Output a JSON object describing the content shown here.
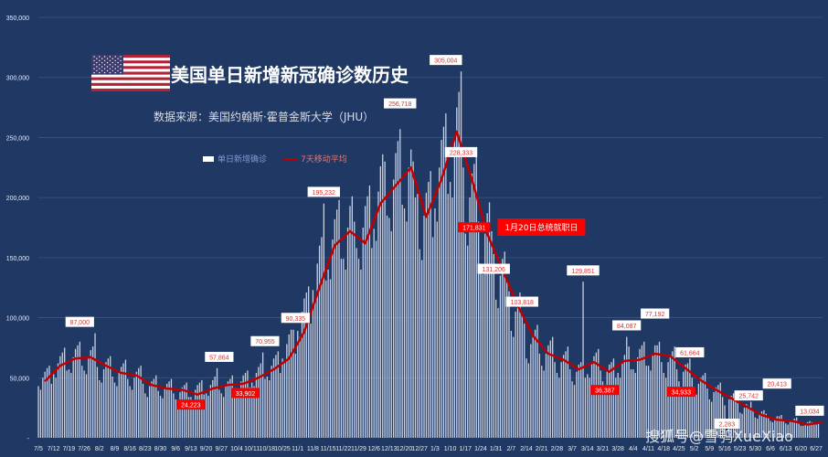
{
  "chart_data": {
    "type": "bar+line",
    "title": "美国单日新增新冠确诊数历史",
    "subtitle": "数据来源：美国约翰斯·霍普金斯大学（JHU）",
    "legend": [
      {
        "label": "单日新增确诊",
        "kind": "bar",
        "color": "#ffffff"
      },
      {
        "label": "7天移动平均",
        "kind": "line",
        "color": "#c00000"
      }
    ],
    "legend_placement": "top-left",
    "ylim": [
      0,
      350000
    ],
    "yticks": [
      0,
      50000,
      100000,
      150000,
      200000,
      250000,
      300000,
      350000
    ],
    "ytick_labels": [
      "-",
      "50,000",
      "100,000",
      "150,000",
      "200,000",
      "250,000",
      "300,000",
      "350,000"
    ],
    "xtick_labels": [
      "7/5",
      "7/12",
      "7/19",
      "7/26",
      "8/2",
      "8/9",
      "8/16",
      "8/23",
      "8/30",
      "9/6",
      "9/13",
      "9/20",
      "9/27",
      "10/4",
      "10/11",
      "10/18",
      "10/25",
      "11/1",
      "11/8",
      "11/15",
      "11/22",
      "11/29",
      "12/6",
      "12/13",
      "12/20",
      "12/27",
      "1/3",
      "1/10",
      "1/17",
      "1/24",
      "1/31",
      "2/7",
      "2/14",
      "2/21",
      "2/28",
      "3/7",
      "3/14",
      "3/21",
      "3/28",
      "4/4",
      "4/11",
      "4/18",
      "4/25",
      "5/2",
      "5/9",
      "5/16",
      "5/23",
      "5/30",
      "6/6",
      "6/13",
      "6/20",
      "6/27"
    ],
    "grid": true,
    "daily_series_start": "7/5",
    "daily": [
      43000,
      40000,
      50000,
      55000,
      58000,
      60000,
      45000,
      53000,
      50000,
      62000,
      68000,
      71000,
      75000,
      56000,
      57000,
      54000,
      67000,
      74000,
      77000,
      80000,
      60000,
      56000,
      53000,
      66000,
      73000,
      76000,
      87000,
      59000,
      48000,
      46000,
      57000,
      63000,
      66000,
      68000,
      51000,
      46000,
      43000,
      54000,
      59000,
      62000,
      65000,
      49000,
      43000,
      40000,
      50000,
      55000,
      58000,
      60000,
      45000,
      37000,
      34000,
      43000,
      47000,
      49000,
      52000,
      39000,
      35000,
      33000,
      41000,
      45000,
      47000,
      49000,
      37000,
      32000,
      30000,
      38000,
      42000,
      44000,
      46000,
      34000,
      34000,
      24000,
      40000,
      44000,
      46000,
      48000,
      36000,
      37000,
      35000,
      44000,
      48000,
      51000,
      58000,
      40000,
      37000,
      34000,
      43000,
      47000,
      49000,
      52000,
      39000,
      40000,
      34000,
      47000,
      52000,
      54000,
      56000,
      42000,
      46000,
      43000,
      54000,
      59000,
      62000,
      71000,
      49000,
      51000,
      48000,
      60000,
      66000,
      69000,
      72000,
      54000,
      66000,
      62000,
      78000,
      86000,
      90000,
      90000,
      70000,
      89000,
      84000,
      105000,
      116000,
      121000,
      126000,
      95000,
      123000,
      116000,
      145000,
      160000,
      167000,
      195000,
      131000,
      140000,
      132000,
      165000,
      182000,
      190000,
      198000,
      149000,
      149000,
      140000,
      175000,
      193000,
      201000,
      180000,
      158000,
      149000,
      140000,
      175000,
      193000,
      201000,
      210000,
      158000,
      174000,
      164000,
      205000,
      226000,
      236000,
      230000,
      185000,
      183000,
      172000,
      215000,
      237000,
      247000,
      257000,
      194000,
      191000,
      180000,
      225000,
      240000,
      230000,
      200000,
      203000,
      157000,
      148000,
      185000,
      204000,
      213000,
      222000,
      167000,
      191000,
      180000,
      225000,
      248000,
      259000,
      270000,
      203000,
      213000,
      200000,
      250000,
      275000,
      288000,
      305000,
      225000,
      170000,
      160000,
      200000,
      220000,
      228000,
      240000,
      180000,
      145000,
      136000,
      170000,
      187000,
      196000,
      172000,
      153000,
      115000,
      108000,
      135000,
      149000,
      155000,
      131000,
      122000,
      89000,
      84000,
      105000,
      116000,
      121000,
      104000,
      95000,
      66000,
      62000,
      78000,
      86000,
      90000,
      94000,
      70000,
      60000,
      56000,
      70000,
      77000,
      81000,
      84000,
      63000,
      54000,
      50000,
      63000,
      69000,
      72000,
      76000,
      57000,
      47000,
      44000,
      55000,
      61000,
      63000,
      130000,
      50000,
      53000,
      50000,
      62000,
      68000,
      71000,
      74000,
      56000,
      47000,
      36000,
      55000,
      61000,
      63000,
      66000,
      50000,
      54000,
      50000,
      63000,
      69000,
      84000,
      76000,
      57000,
      57000,
      54000,
      67000,
      74000,
      77000,
      80000,
      60000,
      60000,
      56000,
      70000,
      77000,
      77000,
      80000,
      63000,
      54000,
      50000,
      63000,
      69000,
      72000,
      76000,
      57000,
      47000,
      35000,
      55000,
      61000,
      62000,
      66000,
      50000,
      38000,
      36000,
      45000,
      50000,
      52000,
      54000,
      41000,
      32000,
      30000,
      38000,
      42000,
      44000,
      46000,
      34000,
      27000,
      2000,
      32000,
      35000,
      37000,
      38000,
      29000,
      21000,
      20000,
      25000,
      28000,
      26000,
      30000,
      23000,
      17000,
      16000,
      20000,
      22000,
      23000,
      20000,
      18000,
      14000,
      13000,
      16000,
      18000,
      18000,
      19000,
      14000,
      12000,
      11000,
      14000,
      15000,
      16000,
      17000,
      13000,
      10000,
      10000,
      12000,
      13000,
      14000,
      13000,
      11000,
      11000,
      13000
    ],
    "moving_average_weekly": [
      {
        "x": "7/5",
        "y": 47000
      },
      {
        "x": "7/12",
        "y": 60000
      },
      {
        "x": "7/19",
        "y": 66000
      },
      {
        "x": "7/26",
        "y": 67000
      },
      {
        "x": "8/2",
        "y": 60000
      },
      {
        "x": "8/9",
        "y": 54000
      },
      {
        "x": "8/16",
        "y": 52000
      },
      {
        "x": "8/23",
        "y": 44000
      },
      {
        "x": "8/30",
        "y": 41000
      },
      {
        "x": "9/6",
        "y": 40000
      },
      {
        "x": "9/13",
        "y": 36000
      },
      {
        "x": "9/20",
        "y": 41000
      },
      {
        "x": "9/27",
        "y": 44000
      },
      {
        "x": "10/4",
        "y": 45000
      },
      {
        "x": "10/11",
        "y": 50000
      },
      {
        "x": "10/18",
        "y": 57000
      },
      {
        "x": "10/25",
        "y": 66000
      },
      {
        "x": "11/1",
        "y": 88000
      },
      {
        "x": "11/8",
        "y": 125000
      },
      {
        "x": "11/15",
        "y": 160000
      },
      {
        "x": "11/22",
        "y": 172000
      },
      {
        "x": "11/29",
        "y": 162000
      },
      {
        "x": "12/6",
        "y": 195000
      },
      {
        "x": "12/13",
        "y": 210000
      },
      {
        "x": "12/20",
        "y": 225000
      },
      {
        "x": "12/27",
        "y": 184000
      },
      {
        "x": "1/3",
        "y": 215000
      },
      {
        "x": "1/10",
        "y": 255000
      },
      {
        "x": "1/17",
        "y": 215000
      },
      {
        "x": "1/24",
        "y": 170000
      },
      {
        "x": "1/31",
        "y": 140000
      },
      {
        "x": "2/7",
        "y": 110000
      },
      {
        "x": "2/14",
        "y": 85000
      },
      {
        "x": "2/21",
        "y": 70000
      },
      {
        "x": "2/28",
        "y": 65000
      },
      {
        "x": "3/7",
        "y": 57000
      },
      {
        "x": "3/14",
        "y": 63000
      },
      {
        "x": "3/21",
        "y": 55000
      },
      {
        "x": "3/28",
        "y": 64000
      },
      {
        "x": "4/4",
        "y": 65000
      },
      {
        "x": "4/11",
        "y": 70000
      },
      {
        "x": "4/18",
        "y": 68000
      },
      {
        "x": "4/25",
        "y": 58000
      },
      {
        "x": "5/2",
        "y": 48000
      },
      {
        "x": "5/9",
        "y": 40000
      },
      {
        "x": "5/16",
        "y": 33000
      },
      {
        "x": "5/23",
        "y": 26000
      },
      {
        "x": "5/30",
        "y": 19000
      },
      {
        "x": "6/6",
        "y": 15000
      },
      {
        "x": "6/13",
        "y": 14000
      },
      {
        "x": "6/20",
        "y": 11000
      },
      {
        "x": "6/27",
        "y": 13000
      }
    ],
    "annotations": [
      {
        "text": "87,000",
        "x": "7/24",
        "y": 87000,
        "style": "white"
      },
      {
        "text": "24,223",
        "x": "9/13",
        "y": 24223,
        "style": "red"
      },
      {
        "text": "57,864",
        "x": "9/26",
        "y": 57864,
        "style": "white"
      },
      {
        "text": "33,902",
        "x": "10/8",
        "y": 33902,
        "style": "red"
      },
      {
        "text": "70,955",
        "x": "10/17",
        "y": 70955,
        "style": "white"
      },
      {
        "text": "90,335",
        "x": "10/31",
        "y": 90335,
        "style": "white"
      },
      {
        "text": "195,232",
        "x": "11/13",
        "y": 195232,
        "style": "white"
      },
      {
        "text": "256,718",
        "x": "12/18",
        "y": 256718,
        "style": "white"
      },
      {
        "text": "305,004",
        "x": "1/8",
        "y": 305004,
        "style": "white"
      },
      {
        "text": "228,333",
        "x": "1/15",
        "y": 228333,
        "style": "white"
      },
      {
        "text": "171,831",
        "x": "1/21",
        "y": 171831,
        "style": "red"
      },
      {
        "text": "131,206",
        "x": "1/30",
        "y": 131206,
        "style": "white"
      },
      {
        "text": "103,818",
        "x": "2/12",
        "y": 103818,
        "style": "white"
      },
      {
        "text": "129,851",
        "x": "3/12",
        "y": 129851,
        "style": "white"
      },
      {
        "text": "36,387",
        "x": "3/22",
        "y": 36387,
        "style": "red"
      },
      {
        "text": "84,087",
        "x": "4/1",
        "y": 84087,
        "style": "white"
      },
      {
        "text": "77,192",
        "x": "4/14",
        "y": 77192,
        "style": "white"
      },
      {
        "text": "34,933",
        "x": "4/26",
        "y": 34933,
        "style": "red"
      },
      {
        "text": "61,664",
        "x": "4/30",
        "y": 61664,
        "style": "white"
      },
      {
        "text": "2,283",
        "x": "5/17",
        "y": 2283,
        "style": "white"
      },
      {
        "text": "25,742",
        "x": "5/27",
        "y": 25742,
        "style": "white"
      },
      {
        "text": "20,413",
        "x": "6/9",
        "y": 20413,
        "style": "white"
      },
      {
        "text": "13,034",
        "x": "6/24",
        "y": 13034,
        "style": "white"
      }
    ],
    "event_callout": {
      "text": "1月20日总统就职日",
      "x": "1/20"
    }
  },
  "watermark": "搜狐号@雪鸮XueXiao",
  "colors": {
    "background": "#1f3864",
    "bars": "#c9d1e2",
    "line": "#c00000",
    "label_red": "#ff0000"
  }
}
